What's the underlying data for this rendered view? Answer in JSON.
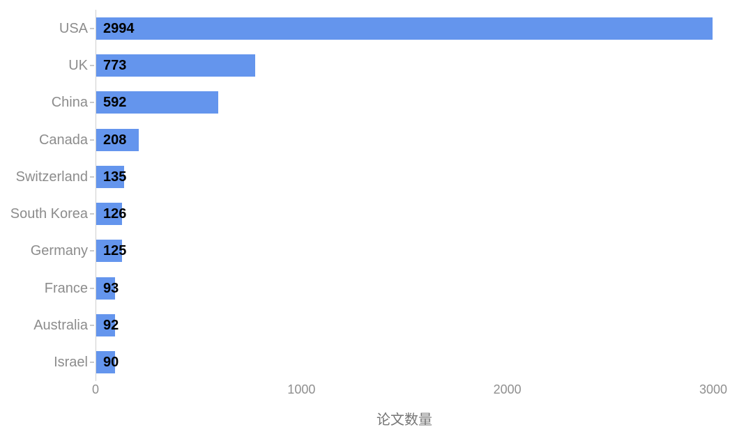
{
  "chart_data": {
    "type": "bar",
    "orientation": "horizontal",
    "title": "",
    "xlabel": "论文数量",
    "ylabel": "",
    "categories": [
      "USA",
      "UK",
      "China",
      "Canada",
      "Switzerland",
      "South Korea",
      "Germany",
      "France",
      "Australia",
      "Israel"
    ],
    "values": [
      2994,
      773,
      592,
      208,
      135,
      126,
      125,
      93,
      92,
      90
    ],
    "xlim": [
      0,
      3000
    ],
    "xticks": [
      0,
      1000,
      2000,
      3000
    ],
    "xtick_labels": [
      "0",
      "1000",
      "2000",
      "3000"
    ],
    "value_labels_position": "inside-left",
    "grid": false,
    "legend": false,
    "colors": {
      "bar": "#6495ED",
      "value_label": "#000000",
      "category_label": "#8c8c8c",
      "tick_label": "#8f8f8f",
      "axis_title": "#757575",
      "axis_line": "#cfcfcf",
      "background": "#ffffff"
    }
  }
}
